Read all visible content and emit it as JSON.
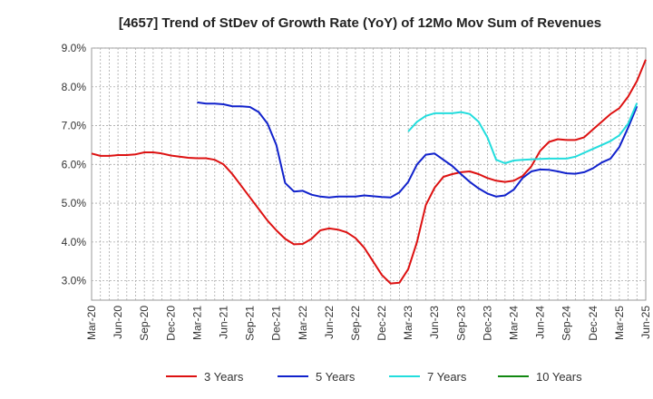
{
  "chart_data": {
    "type": "line",
    "title": "[4657]  Trend of StDev of Growth Rate (YoY) of 12Mo Mov Sum of Revenues",
    "xlabel": "",
    "ylabel": "",
    "ylim": [
      2.5,
      9.0
    ],
    "yticks": [
      3.0,
      4.0,
      5.0,
      6.0,
      7.0,
      8.0,
      9.0
    ],
    "ytick_labels": [
      "3.0%",
      "4.0%",
      "5.0%",
      "6.0%",
      "7.0%",
      "8.0%",
      "9.0%"
    ],
    "x_start": "Mar-20",
    "x_end": "Jun-25",
    "xtick_labels": [
      "Mar-20",
      "Jun-20",
      "Sep-20",
      "Dec-20",
      "Mar-21",
      "Jun-21",
      "Sep-21",
      "Dec-21",
      "Mar-22",
      "Jun-22",
      "Sep-22",
      "Dec-22",
      "Mar-23",
      "Jun-23",
      "Sep-23",
      "Dec-23",
      "Mar-24",
      "Jun-24",
      "Sep-24",
      "Dec-24",
      "Mar-25",
      "Jun-25"
    ],
    "grid": true,
    "legend_position": "bottom",
    "series": [
      {
        "name": "3 Years",
        "color": "#dd1111",
        "start_month_index": 0,
        "values": [
          6.28,
          6.22,
          6.22,
          6.24,
          6.24,
          6.26,
          6.31,
          6.31,
          6.28,
          6.23,
          6.2,
          6.17,
          6.16,
          6.16,
          6.12,
          6.0,
          5.75,
          5.45,
          5.15,
          4.85,
          4.55,
          4.3,
          4.08,
          3.94,
          3.95,
          4.08,
          4.3,
          4.35,
          4.32,
          4.25,
          4.1,
          3.85,
          3.5,
          3.15,
          2.93,
          2.95,
          3.3,
          4.0,
          4.95,
          5.4,
          5.68,
          5.75,
          5.8,
          5.82,
          5.75,
          5.65,
          5.58,
          5.55,
          5.58,
          5.7,
          5.95,
          6.35,
          6.58,
          6.65,
          6.63,
          6.63,
          6.7,
          6.9,
          7.1,
          7.3,
          7.45,
          7.75,
          8.15,
          8.7
        ]
      },
      {
        "name": "5 Years",
        "color": "#1122cc",
        "start_month_index": 12,
        "values": [
          7.6,
          7.57,
          7.57,
          7.55,
          7.5,
          7.5,
          7.48,
          7.35,
          7.05,
          6.5,
          5.52,
          5.3,
          5.32,
          5.22,
          5.17,
          5.15,
          5.17,
          5.17,
          5.17,
          5.2,
          5.18,
          5.16,
          5.15,
          5.28,
          5.55,
          6.0,
          6.25,
          6.28,
          6.12,
          5.96,
          5.75,
          5.55,
          5.38,
          5.25,
          5.17,
          5.2,
          5.35,
          5.65,
          5.82,
          5.87,
          5.86,
          5.82,
          5.77,
          5.76,
          5.8,
          5.9,
          6.05,
          6.15,
          6.45,
          6.95,
          7.5
        ]
      },
      {
        "name": "7 Years",
        "color": "#22dddd",
        "start_month_index": 36,
        "values": [
          6.85,
          7.1,
          7.25,
          7.32,
          7.32,
          7.32,
          7.35,
          7.3,
          7.1,
          6.7,
          6.12,
          6.03,
          6.1,
          6.12,
          6.13,
          6.14,
          6.15,
          6.15,
          6.15,
          6.2,
          6.3,
          6.4,
          6.5,
          6.6,
          6.75,
          7.05,
          7.58
        ]
      },
      {
        "name": "10 Years",
        "color": "#118811",
        "start_month_index": 0,
        "values": []
      }
    ]
  }
}
